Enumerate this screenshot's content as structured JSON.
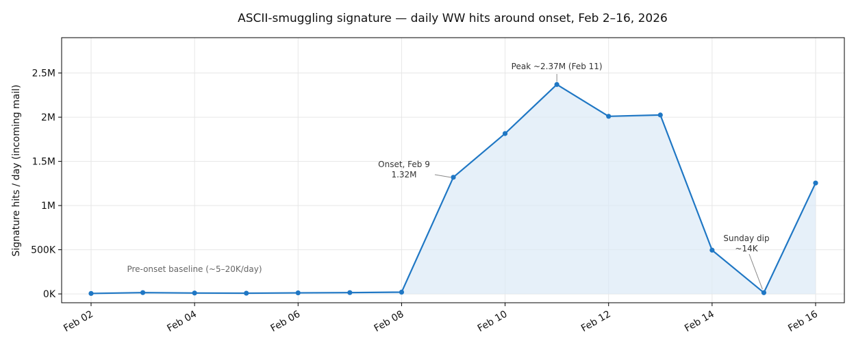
{
  "chart_data": {
    "type": "line",
    "title": "ASCII-smuggling signature — daily WW hits around onset, Feb 2–16, 2026",
    "xlabel": "",
    "ylabel": "Signature hits / day (incoming mail)",
    "x": [
      "2026-02-02",
      "2026-02-03",
      "2026-02-04",
      "2026-02-05",
      "2026-02-06",
      "2026-02-07",
      "2026-02-08",
      "2026-02-09",
      "2026-02-10",
      "2026-02-11",
      "2026-02-12",
      "2026-02-13",
      "2026-02-14",
      "2026-02-15",
      "2026-02-16"
    ],
    "x_tick_labels": [
      "Feb 02",
      "Feb 04",
      "Feb 06",
      "Feb 08",
      "Feb 10",
      "Feb 12",
      "Feb 14",
      "Feb 16"
    ],
    "y_tick_values": [
      0,
      500000,
      1000000,
      1500000,
      2000000,
      2500000
    ],
    "y_tick_labels": [
      "0K",
      "500K",
      "1M",
      "1.5M",
      "2M",
      "2.5M"
    ],
    "ylim": [
      -100000,
      2900000
    ],
    "grid": true,
    "area_fill": true,
    "series": [
      {
        "color": "#1f77c4",
        "values": [
          5000,
          15000,
          10000,
          8000,
          12000,
          15000,
          20000,
          1320000,
          1815000,
          2370000,
          2010000,
          2025000,
          495000,
          14000,
          1255000
        ]
      }
    ],
    "annotations": [
      {
        "text_lines": [
          "Peak ~2.37M (Feb 11)"
        ],
        "point_index": 9
      },
      {
        "text_lines": [
          "Onset, Feb 9",
          "1.32M"
        ],
        "point_index": 7
      },
      {
        "text_lines": [
          "Sunday dip",
          "~14K"
        ],
        "point_index": 13
      },
      {
        "text_lines": [
          "Pre-onset baseline (~5–20K/day)"
        ],
        "point_index": null
      }
    ]
  }
}
